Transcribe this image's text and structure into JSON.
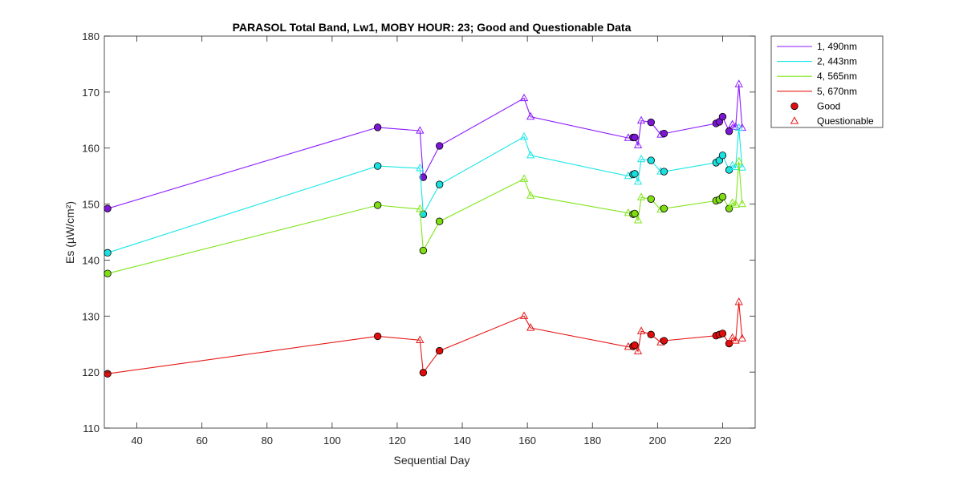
{
  "chart_data": {
    "type": "line",
    "title": "PARASOL Total Band,  Lw1, MOBY HOUR: 23;  Good and Questionable Data",
    "xlabel": "Sequential Day",
    "ylabel": "Es (µW/cm²)",
    "xlim": [
      30,
      230
    ],
    "ylim": [
      110,
      180
    ],
    "xticks": [
      40,
      60,
      80,
      100,
      120,
      140,
      160,
      180,
      200,
      220
    ],
    "yticks": [
      110,
      120,
      130,
      140,
      150,
      160,
      170,
      180
    ],
    "grid": false,
    "legend_position": "outside-top-right",
    "x": [
      31,
      114,
      127,
      128,
      133,
      159,
      161,
      191,
      192.5,
      193,
      194,
      195,
      198,
      201,
      202,
      218,
      219,
      220,
      222,
      223,
      224,
      225,
      226
    ],
    "quality": [
      "good",
      "good",
      "questionable",
      "good",
      "good",
      "questionable",
      "questionable",
      "questionable",
      "good",
      "good",
      "questionable",
      "questionable",
      "good",
      "questionable",
      "good",
      "good",
      "good",
      "good",
      "good",
      "questionable",
      "questionable",
      "questionable",
      "questionable"
    ],
    "series": [
      {
        "name": "1, 490nm",
        "color": "#8b1aff",
        "fill": "#7b16d4",
        "values": [
          149.2,
          163.7,
          163.1,
          154.8,
          160.4,
          168.9,
          165.6,
          161.8,
          161.9,
          161.9,
          160.5,
          164.9,
          164.6,
          162.4,
          162.6,
          164.4,
          164.7,
          165.6,
          163.0,
          164.2,
          163.8,
          171.4,
          163.6
        ]
      },
      {
        "name": "2, 443nm",
        "color": "#1ae6e6",
        "fill": "#19e0e0",
        "values": [
          141.3,
          156.8,
          156.4,
          148.2,
          153.5,
          162.0,
          158.7,
          155.0,
          155.3,
          155.4,
          154.0,
          158.0,
          157.8,
          155.8,
          155.8,
          157.4,
          157.8,
          158.7,
          156.1,
          156.9,
          156.6,
          163.6,
          156.5
        ]
      },
      {
        "name": "4, 565nm",
        "color": "#7fe619",
        "fill": "#80dd14",
        "values": [
          137.6,
          149.8,
          149.1,
          141.7,
          146.9,
          154.5,
          151.5,
          148.4,
          148.2,
          148.3,
          147.1,
          151.2,
          150.9,
          149.0,
          149.2,
          150.6,
          150.8,
          151.3,
          149.2,
          150.2,
          149.9,
          157.6,
          150.0
        ]
      },
      {
        "name": "5, 670nm",
        "color": "#e61919",
        "fill": "#e00d0d",
        "values": [
          119.7,
          126.4,
          125.7,
          119.9,
          123.8,
          130.0,
          127.9,
          124.5,
          124.6,
          124.8,
          123.7,
          127.3,
          126.7,
          125.3,
          125.6,
          126.5,
          126.7,
          126.9,
          125.1,
          126.1,
          125.6,
          132.5,
          126.0
        ]
      }
    ],
    "legend": {
      "good_label": "Good",
      "questionable_label": "Questionable"
    }
  }
}
